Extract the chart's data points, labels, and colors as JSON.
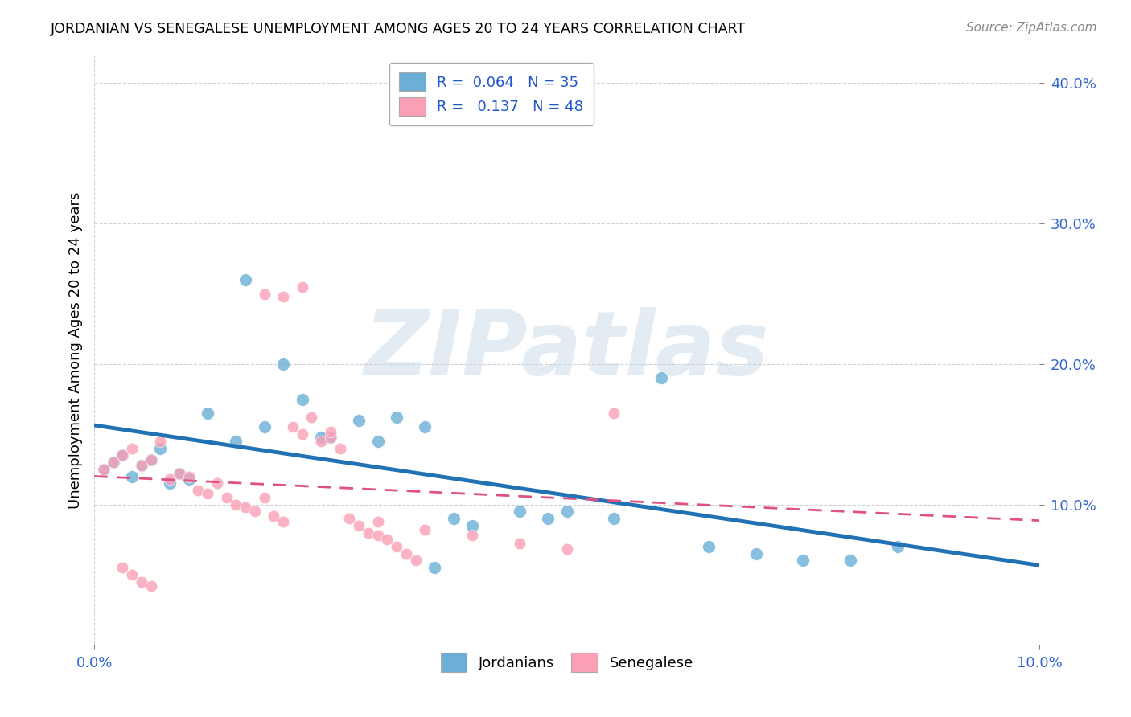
{
  "title": "JORDANIAN VS SENEGALESE UNEMPLOYMENT AMONG AGES 20 TO 24 YEARS CORRELATION CHART",
  "source": "Source: ZipAtlas.com",
  "ylabel": "Unemployment Among Ages 20 to 24 years",
  "xlim": [
    0.0,
    0.1
  ],
  "ylim": [
    0.0,
    0.42
  ],
  "legend_r1": "R =  0.064   N = 35",
  "legend_r2": "R =   0.137   N = 48",
  "color_jordanian": "#6baed6",
  "color_senegalese": "#fa9fb5",
  "color_line_jordan": "#2171b5",
  "color_line_senegal": "#e05080",
  "jordanian_x": [
    0.001,
    0.002,
    0.003,
    0.004,
    0.005,
    0.006,
    0.007,
    0.008,
    0.009,
    0.01,
    0.012,
    0.015,
    0.018,
    0.02,
    0.022,
    0.025,
    0.028,
    0.03,
    0.032,
    0.035,
    0.038,
    0.04,
    0.045,
    0.05,
    0.055,
    0.06,
    0.065,
    0.07,
    0.075,
    0.08,
    0.016,
    0.024,
    0.036,
    0.048,
    0.085
  ],
  "jordanian_y": [
    0.125,
    0.13,
    0.135,
    0.12,
    0.128,
    0.132,
    0.14,
    0.115,
    0.122,
    0.118,
    0.165,
    0.145,
    0.155,
    0.2,
    0.175,
    0.148,
    0.16,
    0.145,
    0.162,
    0.155,
    0.09,
    0.085,
    0.095,
    0.095,
    0.09,
    0.19,
    0.07,
    0.065,
    0.06,
    0.06,
    0.26,
    0.148,
    0.055,
    0.09,
    0.07
  ],
  "senegalese_x": [
    0.001,
    0.002,
    0.003,
    0.004,
    0.005,
    0.006,
    0.007,
    0.008,
    0.009,
    0.01,
    0.011,
    0.012,
    0.013,
    0.014,
    0.015,
    0.016,
    0.017,
    0.018,
    0.019,
    0.02,
    0.021,
    0.022,
    0.023,
    0.024,
    0.025,
    0.026,
    0.027,
    0.028,
    0.029,
    0.03,
    0.031,
    0.032,
    0.033,
    0.034,
    0.018,
    0.02,
    0.022,
    0.025,
    0.03,
    0.035,
    0.04,
    0.045,
    0.05,
    0.055,
    0.003,
    0.004,
    0.005,
    0.006
  ],
  "senegalese_y": [
    0.125,
    0.13,
    0.135,
    0.14,
    0.128,
    0.132,
    0.145,
    0.118,
    0.122,
    0.12,
    0.11,
    0.108,
    0.115,
    0.105,
    0.1,
    0.098,
    0.095,
    0.105,
    0.092,
    0.088,
    0.155,
    0.15,
    0.162,
    0.145,
    0.148,
    0.14,
    0.09,
    0.085,
    0.08,
    0.078,
    0.075,
    0.07,
    0.065,
    0.06,
    0.25,
    0.248,
    0.255,
    0.152,
    0.088,
    0.082,
    0.078,
    0.072,
    0.068,
    0.165,
    0.055,
    0.05,
    0.045,
    0.042
  ],
  "watermark": "ZIPatlas",
  "background_color": "#ffffff"
}
